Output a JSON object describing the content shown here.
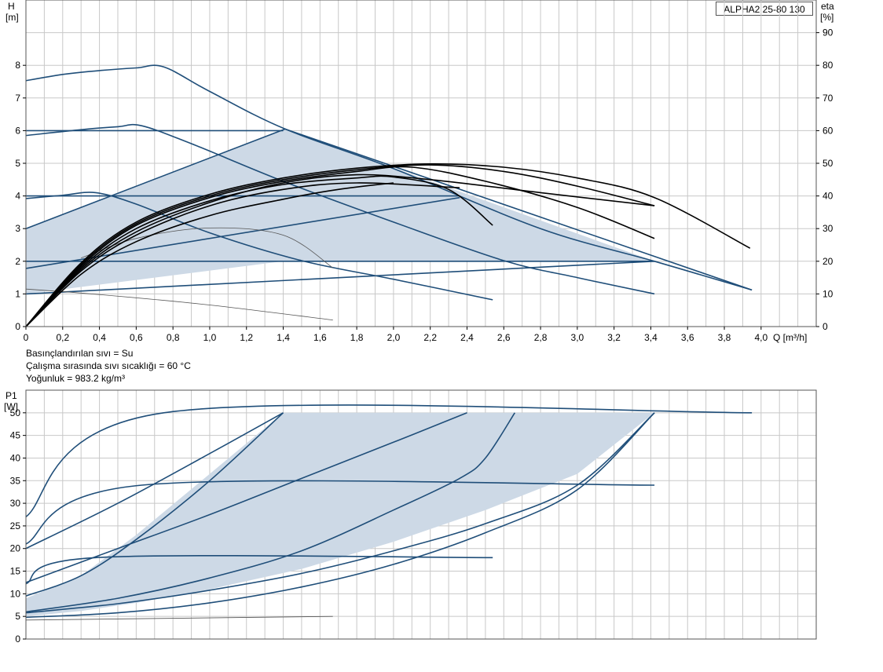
{
  "model_label": "ALPHA2 25-80 130",
  "info": {
    "fluid": "Basınçlandırılan sıvı = Su",
    "temperature": "Çalışma sırasında sıvı sıcaklığı = 60 °C",
    "density": "Yoğunluk = 983.2 kg/m³"
  },
  "colors": {
    "curve_blue": "#1f4e79",
    "eta_black": "#000000",
    "fill": "#cdd9e6",
    "grid": "#c8c8c8",
    "frame": "#555555"
  },
  "chart_data": [
    {
      "type": "line",
      "x_axis": {
        "label": "Q [m³/h]",
        "range": [
          0,
          4.3
        ],
        "ticks": [
          0,
          0.2,
          0.4,
          0.6,
          0.8,
          1.0,
          1.2,
          1.4,
          1.6,
          1.8,
          2.0,
          2.2,
          2.4,
          2.6,
          2.8,
          3.0,
          3.2,
          3.4,
          3.6,
          3.8,
          4.0
        ],
        "tick_labels": [
          "0",
          "0,2",
          "0,4",
          "0,6",
          "0,8",
          "1,0",
          "1,2",
          "1,4",
          "1,6",
          "1,8",
          "2,0",
          "2,2",
          "2,4",
          "2,6",
          "2,8",
          "3,0",
          "3,2",
          "3,4",
          "3,6",
          "3,8",
          "4,0"
        ]
      },
      "y_axis": {
        "label_line1": "H",
        "label_line2": "[m]",
        "range": [
          0,
          10
        ],
        "ticks": [
          0,
          1,
          2,
          3,
          4,
          5,
          6,
          7,
          8
        ]
      },
      "y2_axis": {
        "label_line1": "eta",
        "label_line2": "[%]",
        "range": [
          0,
          100
        ],
        "ticks": [
          0,
          10,
          20,
          30,
          40,
          50,
          60,
          70,
          80,
          90
        ]
      },
      "grid": true,
      "shaded_region": [
        [
          0,
          1
        ],
        [
          0,
          3
        ],
        [
          1.41,
          6.05
        ],
        [
          3.42,
          2.0
        ],
        [
          1.4,
          2.0
        ],
        [
          0,
          1
        ]
      ],
      "series": [
        {
          "style": "blue",
          "points": [
            [
              0,
              7.53
            ],
            [
              0.2,
              7.72
            ],
            [
              0.4,
              7.84
            ],
            [
              0.6,
              7.92
            ],
            [
              0.75,
              7.95
            ],
            [
              1.0,
              7.2
            ],
            [
              1.41,
              6.05
            ],
            [
              2.0,
              4.84
            ],
            [
              2.8,
              3.0
            ],
            [
              3.42,
              2.0
            ],
            [
              3.95,
              1.12
            ]
          ]
        },
        {
          "style": "blue",
          "points": [
            [
              0,
              5.85
            ],
            [
              0.3,
              6.03
            ],
            [
              0.5,
              6.12
            ],
            [
              0.63,
              6.15
            ],
            [
              0.9,
              5.6
            ],
            [
              1.4,
              4.45
            ],
            [
              2.0,
              3.2
            ],
            [
              2.6,
              2.02
            ],
            [
              3.0,
              1.5
            ],
            [
              3.42,
              1.0
            ]
          ]
        },
        {
          "style": "blue",
          "points": [
            [
              0,
              3.92
            ],
            [
              0.2,
              4.02
            ],
            [
              0.38,
              4.1
            ],
            [
              0.6,
              3.75
            ],
            [
              1.0,
              2.87
            ],
            [
              1.5,
              2.02
            ],
            [
              2.0,
              1.45
            ],
            [
              2.54,
              0.82
            ]
          ]
        },
        {
          "style": "blue",
          "points": [
            [
              0,
              6.0
            ],
            [
              1.4,
              6.0
            ]
          ]
        },
        {
          "style": "blue",
          "points": [
            [
              0,
              4.0
            ],
            [
              2.36,
              4.0
            ]
          ]
        },
        {
          "style": "blue",
          "points": [
            [
              0,
              2.0
            ],
            [
              3.42,
              2.0
            ]
          ]
        },
        {
          "style": "blue",
          "points": [
            [
              0,
              3.0
            ],
            [
              1.41,
              6.05
            ]
          ]
        },
        {
          "style": "blue",
          "points": [
            [
              0,
              1.78
            ],
            [
              2.36,
              3.95
            ]
          ]
        },
        {
          "style": "blue",
          "points": [
            [
              0,
              1.0
            ],
            [
              3.42,
              2.0
            ]
          ]
        },
        {
          "style": "blue",
          "points": [
            [
              1.41,
              6.05
            ],
            [
              3.95,
              1.12
            ]
          ]
        },
        {
          "style": "thin-gray",
          "points": [
            [
              0,
              1.15
            ],
            [
              0.4,
              0.98
            ],
            [
              1.0,
              0.66
            ],
            [
              1.67,
              0.2
            ]
          ]
        },
        {
          "style": "thin-gray",
          "points": [
            [
              0.3,
              2.1
            ],
            [
              0.6,
              2.7
            ],
            [
              1.0,
              3.02
            ],
            [
              1.4,
              2.8
            ],
            [
              1.67,
              1.8
            ]
          ]
        },
        {
          "style": "eta",
          "points": [
            [
              0,
              0
            ],
            [
              0.3,
              19.5
            ],
            [
              0.6,
              32
            ],
            [
              1.0,
              40.5
            ],
            [
              1.4,
              45.5
            ],
            [
              1.8,
              48.5
            ],
            [
              2.2,
              49.8
            ],
            [
              2.6,
              48.8
            ],
            [
              3.0,
              45.5
            ],
            [
              3.42,
              39.5
            ],
            [
              3.94,
              24
            ]
          ]
        },
        {
          "style": "eta",
          "points": [
            [
              0,
              0
            ],
            [
              0.3,
              19
            ],
            [
              0.6,
              31.5
            ],
            [
              1.0,
              40
            ],
            [
              1.4,
              45
            ],
            [
              1.8,
              48
            ],
            [
              2.2,
              49.5
            ],
            [
              2.6,
              47.5
            ],
            [
              3.0,
              43
            ],
            [
              3.42,
              37
            ]
          ]
        },
        {
          "style": "eta",
          "points": [
            [
              0,
              0
            ],
            [
              0.3,
              18.5
            ],
            [
              0.6,
              31
            ],
            [
              1.0,
              39.5
            ],
            [
              1.4,
              44.5
            ],
            [
              1.8,
              47.5
            ],
            [
              2.1,
              48.8
            ],
            [
              2.5,
              44.5
            ],
            [
              3.0,
              36.5
            ],
            [
              3.42,
              27
            ]
          ]
        },
        {
          "style": "eta",
          "points": [
            [
              0,
              0
            ],
            [
              0.3,
              18
            ],
            [
              0.6,
              30
            ],
            [
              1.0,
              38.5
            ],
            [
              1.4,
              43.5
            ],
            [
              1.8,
              45.5
            ],
            [
              2.0,
              45.8
            ],
            [
              2.3,
              42
            ],
            [
              2.54,
              31
            ]
          ]
        },
        {
          "style": "eta",
          "points": [
            [
              0,
              0
            ],
            [
              0.3,
              17.5
            ],
            [
              0.6,
              29
            ],
            [
              1.0,
              38
            ],
            [
              1.4,
              44
            ],
            [
              1.8,
              46.5
            ],
            [
              2.2,
              45
            ],
            [
              2.8,
              41
            ],
            [
              3.42,
              37
            ]
          ]
        },
        {
          "style": "eta",
          "points": [
            [
              0,
              0
            ],
            [
              0.3,
              17
            ],
            [
              0.6,
              28
            ],
            [
              1.0,
              37
            ],
            [
              1.4,
              42
            ],
            [
              1.8,
              44
            ],
            [
              2.36,
              42.5
            ]
          ]
        },
        {
          "style": "eta",
          "points": [
            [
              0,
              0
            ],
            [
              0.3,
              16
            ],
            [
              0.6,
              26
            ],
            [
              1.0,
              34
            ],
            [
              1.4,
              39
            ],
            [
              1.7,
              42
            ],
            [
              2.0,
              44
            ]
          ]
        }
      ]
    },
    {
      "type": "line",
      "x_axis": {
        "range": [
          0,
          4.3
        ]
      },
      "y_axis": {
        "label_line1": "P1",
        "label_line2": "[W]",
        "range": [
          0,
          55
        ],
        "ticks": [
          0,
          5,
          10,
          15,
          20,
          25,
          30,
          35,
          40,
          45,
          50
        ]
      },
      "grid": true,
      "shaded_region": [
        [
          0,
          5
        ],
        [
          0.3,
          6.2
        ],
        [
          0.6,
          8
        ],
        [
          1.0,
          11
        ],
        [
          1.5,
          15.5
        ],
        [
          2.0,
          21.5
        ],
        [
          2.5,
          28.5
        ],
        [
          3.0,
          36.5
        ],
        [
          3.42,
          50
        ],
        [
          1.4,
          50
        ],
        [
          1.0,
          36.5
        ],
        [
          0.6,
          23
        ],
        [
          0.3,
          14
        ],
        [
          0,
          9
        ]
      ],
      "series": [
        {
          "style": "blue",
          "points": [
            [
              0,
              27
            ],
            [
              0.75,
              50
            ],
            [
              3.95,
              50
            ]
          ]
        },
        {
          "style": "blue",
          "points": [
            [
              0,
              21
            ],
            [
              0.63,
              34
            ],
            [
              3.42,
              34
            ]
          ]
        },
        {
          "style": "blue",
          "points": [
            [
              0,
              12.2
            ],
            [
              0.38,
              18
            ],
            [
              2.54,
              18
            ]
          ]
        },
        {
          "style": "blue",
          "points": [
            [
              0,
              9.5
            ],
            [
              0.3,
              14
            ],
            [
              0.6,
              22
            ],
            [
              1.0,
              35
            ],
            [
              1.4,
              50
            ]
          ]
        },
        {
          "style": "blue",
          "points": [
            [
              0,
              12.5
            ],
            [
              0.5,
              20
            ],
            [
              1.0,
              27.5
            ],
            [
              1.5,
              35.5
            ],
            [
              2.0,
              43.5
            ],
            [
              2.4,
              50
            ]
          ]
        },
        {
          "style": "blue",
          "points": [
            [
              0,
              6
            ],
            [
              0.5,
              9
            ],
            [
              1.0,
              13.5
            ],
            [
              1.5,
              19.5
            ],
            [
              2.0,
              28.5
            ],
            [
              2.36,
              35.5
            ],
            [
              2.5,
              40
            ],
            [
              2.66,
              50
            ]
          ]
        },
        {
          "style": "blue",
          "points": [
            [
              0,
              5.8
            ],
            [
              0.5,
              7.8
            ],
            [
              1.0,
              10.8
            ],
            [
              1.5,
              14.5
            ],
            [
              2.0,
              19.5
            ],
            [
              2.5,
              25.5
            ],
            [
              3.0,
              34
            ],
            [
              3.42,
              50
            ]
          ]
        },
        {
          "style": "blue",
          "points": [
            [
              0,
              4.8
            ],
            [
              0.5,
              5.8
            ],
            [
              1.0,
              8
            ],
            [
              1.5,
              11.5
            ],
            [
              2.0,
              16.5
            ],
            [
              2.5,
              23.5
            ],
            [
              3.0,
              33
            ],
            [
              3.42,
              50
            ]
          ]
        },
        {
          "style": "blue",
          "points": [
            [
              0,
              20
            ],
            [
              0.5,
              30
            ],
            [
              1.0,
              41
            ],
            [
              1.4,
              50
            ]
          ]
        },
        {
          "style": "thin-gray",
          "points": [
            [
              0,
              4.2
            ],
            [
              1.67,
              5
            ]
          ]
        }
      ]
    }
  ]
}
